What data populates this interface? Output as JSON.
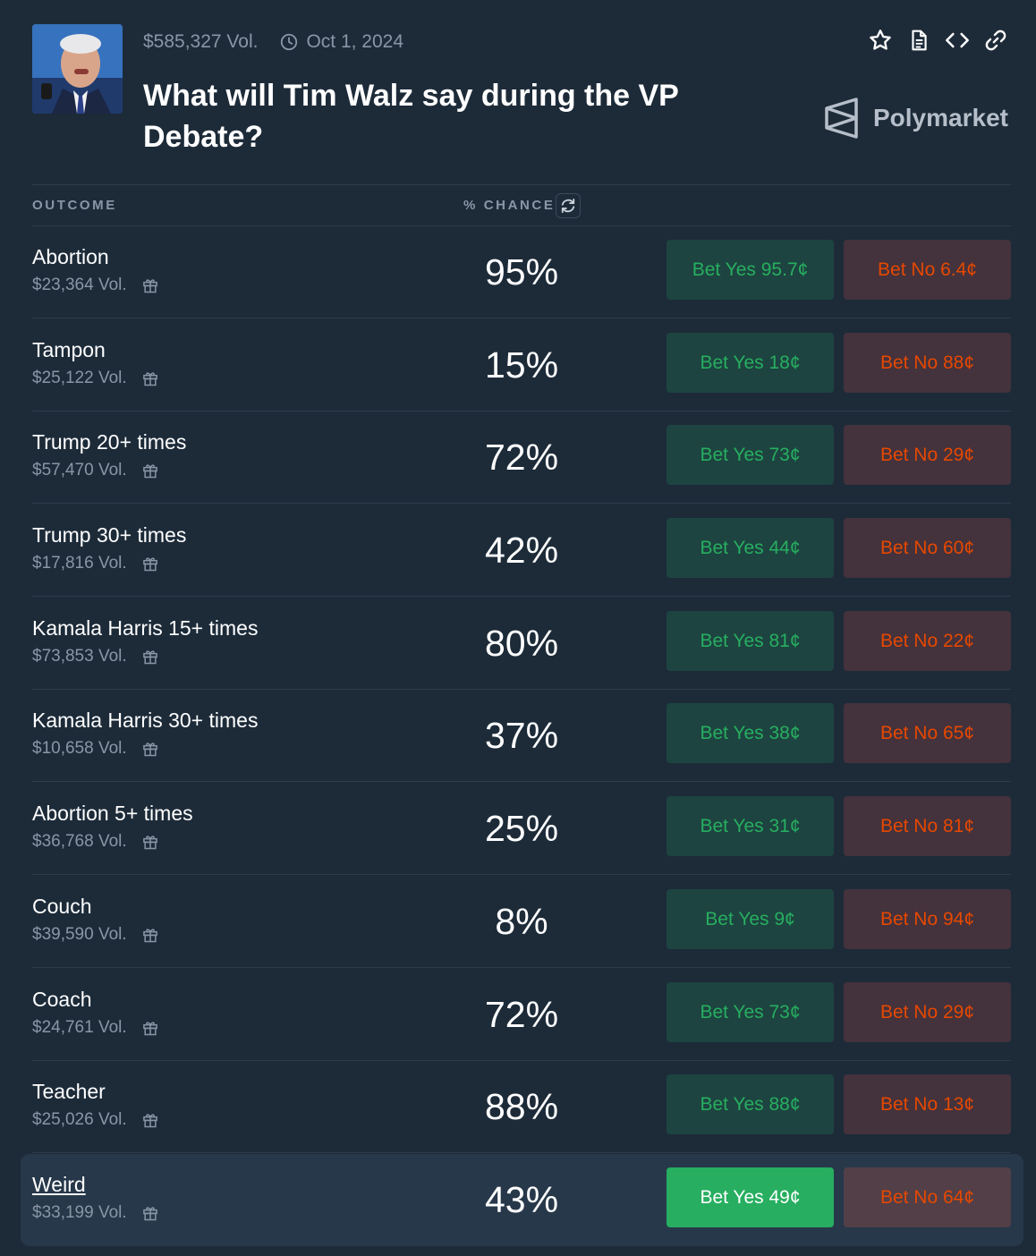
{
  "market": {
    "volume": "$585,327 Vol.",
    "date": "Oct 1, 2024",
    "title": "What will Tim Walz say during the VP Debate?",
    "brand": "Polymarket"
  },
  "header_actions": [
    "star-icon",
    "document-icon",
    "code-icon",
    "link-icon"
  ],
  "table": {
    "outcome_header": "OUTCOME",
    "chance_header": "% CHANCE"
  },
  "outcomes": [
    {
      "name": "Abortion",
      "volume": "$23,364 Vol.",
      "chance": "95%",
      "yes": "Bet Yes 95.7¢",
      "no": "Bet No 6.4¢"
    },
    {
      "name": "Tampon",
      "volume": "$25,122 Vol.",
      "chance": "15%",
      "yes": "Bet Yes 18¢",
      "no": "Bet No 88¢"
    },
    {
      "name": "Trump 20+ times",
      "volume": "$57,470 Vol.",
      "chance": "72%",
      "yes": "Bet Yes 73¢",
      "no": "Bet No 29¢"
    },
    {
      "name": "Trump 30+ times",
      "volume": "$17,816 Vol.",
      "chance": "42%",
      "yes": "Bet Yes 44¢",
      "no": "Bet No 60¢"
    },
    {
      "name": "Kamala Harris 15+ times",
      "volume": "$73,853 Vol.",
      "chance": "80%",
      "yes": "Bet Yes 81¢",
      "no": "Bet No 22¢"
    },
    {
      "name": "Kamala Harris 30+ times",
      "volume": "$10,658 Vol.",
      "chance": "37%",
      "yes": "Bet Yes 38¢",
      "no": "Bet No 65¢"
    },
    {
      "name": "Abortion 5+ times",
      "volume": "$36,768 Vol.",
      "chance": "25%",
      "yes": "Bet Yes 31¢",
      "no": "Bet No 81¢"
    },
    {
      "name": "Couch",
      "volume": "$39,590 Vol.",
      "chance": "8%",
      "yes": "Bet Yes 9¢",
      "no": "Bet No 94¢"
    },
    {
      "name": "Coach",
      "volume": "$24,761 Vol.",
      "chance": "72%",
      "yes": "Bet Yes 73¢",
      "no": "Bet No 29¢"
    },
    {
      "name": "Teacher",
      "volume": "$25,026 Vol.",
      "chance": "88%",
      "yes": "Bet Yes 88¢",
      "no": "Bet No 13¢"
    },
    {
      "name": "Weird",
      "volume": "$33,199 Vol.",
      "chance": "43%",
      "yes": "Bet Yes 49¢",
      "no": "Bet No 64¢",
      "highlighted": true
    }
  ],
  "colors": {
    "background": "#1d2b39",
    "yes_text": "#27ae60",
    "no_text": "#e64800",
    "muted_text": "#8896a6"
  }
}
